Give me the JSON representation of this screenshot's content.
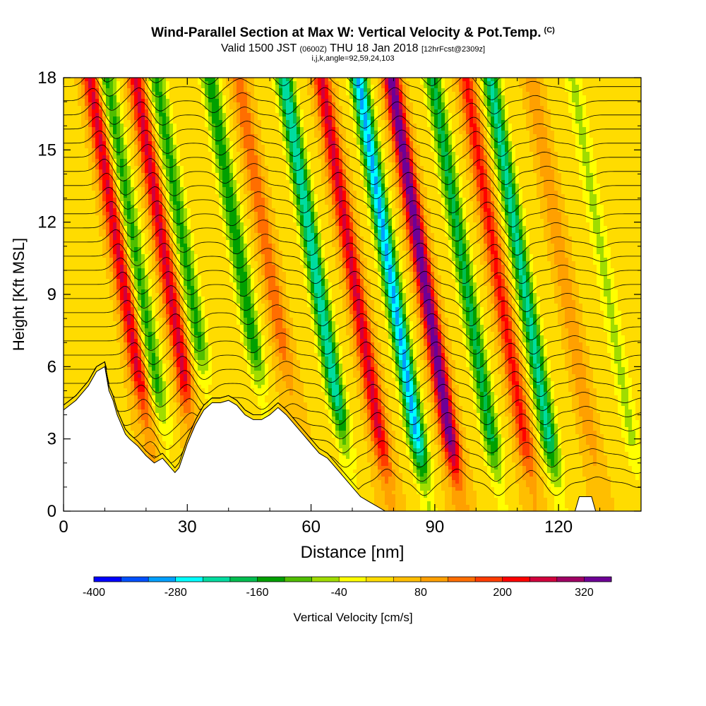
{
  "header": {
    "title": "Wind-Parallel Section at Max W: Vertical Velocity & Pot.Temp.",
    "copyright": "(C)",
    "valid_prefix": "Valid 1500 JST",
    "valid_utc": "(0600Z)",
    "valid_date": "THU 18 Jan 2018",
    "forecast": "[12hrFcst@2309z]",
    "indices": "i,j,k,angle=92,59,24,103"
  },
  "chart_data": {
    "type": "heatmap",
    "xlabel": "Distance [nm]",
    "ylabel": "Height [Kft MSL]",
    "xlim": [
      0,
      140
    ],
    "ylim": [
      0,
      18
    ],
    "x_ticks": [
      0,
      30,
      60,
      90,
      120
    ],
    "y_ticks": [
      0,
      3,
      6,
      9,
      12,
      15,
      18
    ],
    "colorbar": {
      "label": "Vertical Velocity [cm/s]",
      "min": -400,
      "max": 360,
      "step": 40,
      "tick_labels": [
        -400,
        -280,
        -160,
        -40,
        80,
        200,
        320
      ],
      "colors": [
        "#0000ff",
        "#0050ff",
        "#00a0ff",
        "#00ffff",
        "#00dca0",
        "#00be50",
        "#00a000",
        "#50be00",
        "#a0dc00",
        "#ffff00",
        "#ffdc00",
        "#ffbe00",
        "#ffa000",
        "#ff6e00",
        "#ff3c00",
        "#ff0000",
        "#d2003c",
        "#a00064",
        "#6e0096"
      ]
    },
    "terrain_profile_kft": [
      [
        0,
        4.2
      ],
      [
        3,
        4.6
      ],
      [
        6,
        5.2
      ],
      [
        8,
        5.8
      ],
      [
        10,
        6.0
      ],
      [
        11,
        5.0
      ],
      [
        12,
        4.6
      ],
      [
        13,
        4.0
      ],
      [
        14,
        3.6
      ],
      [
        15,
        3.2
      ],
      [
        16,
        3.0
      ],
      [
        18,
        2.7
      ],
      [
        20,
        2.3
      ],
      [
        22,
        2.0
      ],
      [
        24,
        2.2
      ],
      [
        26,
        1.8
      ],
      [
        27,
        1.6
      ],
      [
        28,
        1.8
      ],
      [
        30,
        2.8
      ],
      [
        32,
        3.6
      ],
      [
        34,
        4.2
      ],
      [
        36,
        4.5
      ],
      [
        38,
        4.5
      ],
      [
        40,
        4.6
      ],
      [
        42,
        4.4
      ],
      [
        44,
        4.0
      ],
      [
        46,
        3.8
      ],
      [
        48,
        3.8
      ],
      [
        50,
        4.0
      ],
      [
        52,
        4.3
      ],
      [
        54,
        4.0
      ],
      [
        56,
        3.6
      ],
      [
        58,
        3.2
      ],
      [
        60,
        2.8
      ],
      [
        62,
        2.4
      ],
      [
        64,
        2.2
      ],
      [
        66,
        1.8
      ],
      [
        68,
        1.4
      ],
      [
        70,
        1.0
      ],
      [
        72,
        0.6
      ],
      [
        74,
        0.4
      ],
      [
        76,
        0.2
      ],
      [
        78,
        0
      ],
      [
        124,
        0
      ],
      [
        125,
        0.6
      ],
      [
        128,
        0.6
      ],
      [
        129,
        0
      ],
      [
        140,
        0
      ]
    ],
    "wave_bands": [
      {
        "x_center": 15,
        "polarity": "up",
        "peak_cm_s": 220
      },
      {
        "x_center": 19,
        "polarity": "down",
        "peak_cm_s": -160
      },
      {
        "x_center": 26,
        "polarity": "up",
        "peak_cm_s": 220
      },
      {
        "x_center": 31,
        "polarity": "down",
        "peak_cm_s": -160
      },
      {
        "x_center": 44,
        "polarity": "down",
        "peak_cm_s": -180
      },
      {
        "x_center": 51,
        "polarity": "up",
        "peak_cm_s": 120
      },
      {
        "x_center": 62,
        "polarity": "down",
        "peak_cm_s": -260
      },
      {
        "x_center": 71,
        "polarity": "up",
        "peak_cm_s": 220
      },
      {
        "x_center": 80,
        "polarity": "down",
        "peak_cm_s": -320
      },
      {
        "x_center": 88,
        "polarity": "up",
        "peak_cm_s": 320
      },
      {
        "x_center": 98,
        "polarity": "down",
        "peak_cm_s": -200
      },
      {
        "x_center": 106,
        "polarity": "up",
        "peak_cm_s": 180
      },
      {
        "x_center": 112,
        "polarity": "down",
        "peak_cm_s": -240
      },
      {
        "x_center": 122,
        "polarity": "up",
        "peak_cm_s": 80
      },
      {
        "x_center": 132,
        "polarity": "down",
        "peak_cm_s": -80
      }
    ],
    "isentrope_count": 30
  }
}
